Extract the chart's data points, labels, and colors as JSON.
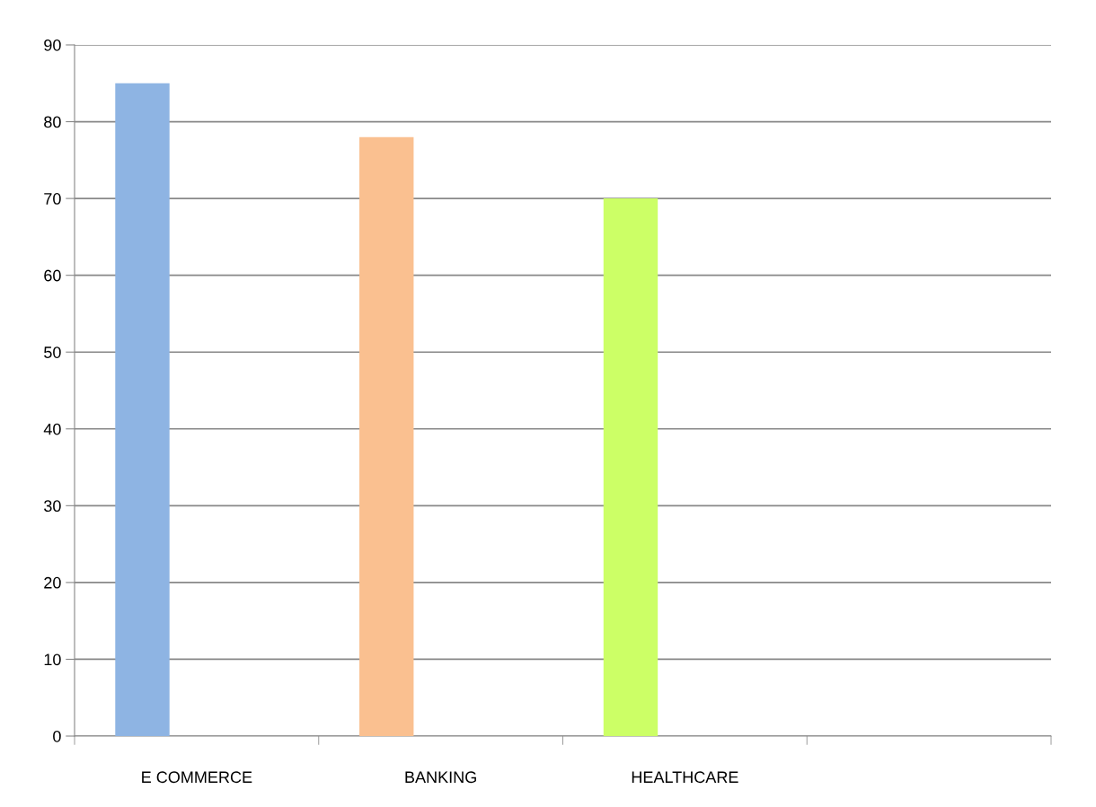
{
  "chart_data": {
    "type": "bar",
    "categories": [
      "E COMMERCE",
      "BANKING",
      "HEALTHCARE",
      null
    ],
    "values": [
      85,
      78,
      70,
      null
    ],
    "colors": [
      "#8eb4e3",
      "#fac090",
      "#ccff66",
      "#8eb4e3"
    ],
    "ylim": [
      0,
      90
    ],
    "yticks": [
      0,
      10,
      20,
      30,
      40,
      50,
      60,
      70,
      80,
      90
    ],
    "grid": "y",
    "legend": false
  }
}
